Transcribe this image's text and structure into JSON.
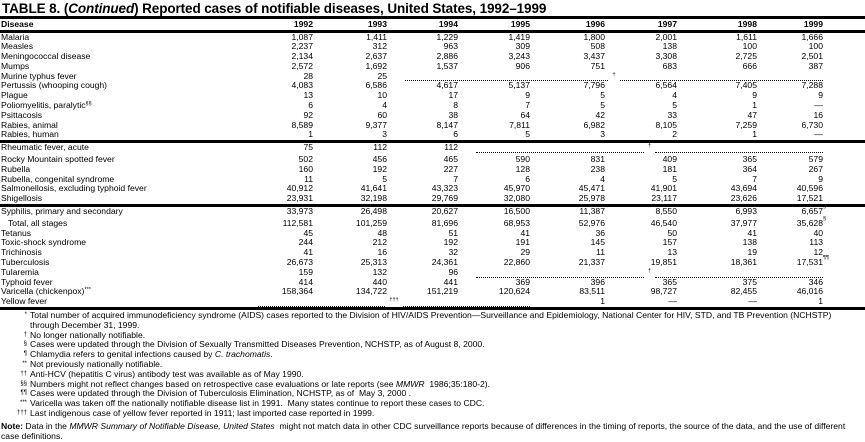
{
  "title": {
    "prefix": "TABLE 8. (",
    "italic": "Continued",
    "suffix": ") Reported cases of notifiable diseases, United States, 1992–1999"
  },
  "header": {
    "disease": "Disease",
    "years": [
      "1992",
      "1993",
      "1994",
      "1995",
      "1996",
      "1997",
      "1998",
      "1999"
    ]
  },
  "groups": [
    [
      {
        "disease": "Malaria",
        "values": [
          "1,087",
          "1,411",
          "1,229",
          "1,419",
          "1,800",
          "2,001",
          "1,611",
          "1,666"
        ]
      },
      {
        "disease": "Measles",
        "values": [
          "2,237",
          "312",
          "963",
          "309",
          "508",
          "138",
          "100",
          "100"
        ]
      },
      {
        "disease": "Meningococcal disease",
        "values": [
          "2,134",
          "2,637",
          "2,886",
          "3,243",
          "3,437",
          "3,308",
          "2,725",
          "2,501"
        ]
      },
      {
        "disease": "Mumps",
        "values": [
          "2,572",
          "1,692",
          "1,537",
          "906",
          "751",
          "683",
          "666",
          "387"
        ]
      },
      {
        "disease": "Murine typhus fever",
        "values": [
          "28",
          "25"
        ],
        "span": {
          "from": 2,
          "mark": "†"
        }
      },
      {
        "disease": "Pertussis (whooping cough)",
        "values": [
          "4,083",
          "6,586",
          "4,617",
          "5,137",
          "7,796",
          "6,564",
          "7,405",
          "7,288"
        ]
      },
      {
        "disease": "Plague",
        "values": [
          "13",
          "10",
          "17",
          "9",
          "5",
          "4",
          "9",
          "9"
        ]
      },
      {
        "disease": "Poliomyelitis, paralytic",
        "sup": "§§",
        "values": [
          "6",
          "4",
          "8",
          "7",
          "5",
          "5",
          "1",
          "—"
        ]
      },
      {
        "disease": "Psittacosis",
        "values": [
          "92",
          "60",
          "38",
          "64",
          "42",
          "33",
          "47",
          "16"
        ]
      },
      {
        "disease": "Rabies, animal",
        "values": [
          "8,589",
          "9,377",
          "8,147",
          "7,811",
          "6,982",
          "8,105",
          "7,259",
          "6,730"
        ]
      },
      {
        "disease": "Rabies, human",
        "values": [
          "1",
          "3",
          "6",
          "5",
          "3",
          "2",
          "1",
          "—"
        ]
      }
    ],
    [
      {
        "disease": "Rheumatic fever, acute",
        "values": [
          "75",
          "112",
          "112"
        ],
        "span": {
          "from": 3,
          "mark": "†"
        },
        "gapAfter": true
      },
      {
        "disease": "Rocky Mountain spotted fever",
        "values": [
          "502",
          "456",
          "465",
          "590",
          "831",
          "409",
          "365",
          "579"
        ]
      },
      {
        "disease": "Rubella",
        "values": [
          "160",
          "192",
          "227",
          "128",
          "238",
          "181",
          "364",
          "267"
        ]
      },
      {
        "disease": "Rubella, congenital syndrome",
        "values": [
          "11",
          "5",
          "7",
          "6",
          "4",
          "5",
          "7",
          "9"
        ]
      },
      {
        "disease": "Salmonellosis, excluding typhoid fever",
        "values": [
          "40,912",
          "41,641",
          "43,323",
          "45,970",
          "45,471",
          "41,901",
          "43,694",
          "40,596"
        ]
      },
      {
        "disease": "Shigellosis",
        "values": [
          "23,931",
          "32,198",
          "29,769",
          "32,080",
          "25,978",
          "23,117",
          "23,626",
          "17,521"
        ]
      }
    ],
    [
      {
        "disease": "Syphilis, primary and secondary",
        "values": [
          "33,973",
          "26,498",
          "20,627",
          "16,500",
          "11,387",
          "8,550",
          "6,993",
          "6,657"
        ],
        "valueSups": {
          "7": "§"
        },
        "gapAfter": true
      },
      {
        "disease": "   Total, all stages",
        "values": [
          "112,581",
          "101,259",
          "81,696",
          "68,953",
          "52,976",
          "46,540",
          "37,977",
          "35,628"
        ],
        "valueSups": {
          "7": "§"
        }
      },
      {
        "disease": "Tetanus",
        "values": [
          "45",
          "48",
          "51",
          "41",
          "36",
          "50",
          "41",
          "40"
        ]
      },
      {
        "disease": "Toxic-shock syndrome",
        "values": [
          "244",
          "212",
          "192",
          "191",
          "145",
          "157",
          "138",
          "113"
        ]
      },
      {
        "disease": "Trichinosis",
        "values": [
          "41",
          "16",
          "32",
          "29",
          "11",
          "13",
          "19",
          "12"
        ]
      },
      {
        "disease": "Tuberculosis",
        "values": [
          "26,673",
          "25,313",
          "24,361",
          "22,860",
          "21,337",
          "19,851",
          "18,361",
          "17,531"
        ],
        "valueSups": {
          "7": "¶¶"
        }
      },
      {
        "disease": "Tularemia",
        "values": [
          "159",
          "132",
          "96"
        ],
        "span": {
          "from": 3,
          "mark": "†"
        }
      },
      {
        "disease": "Typhoid fever",
        "values": [
          "414",
          "440",
          "441",
          "369",
          "396",
          "365",
          "375",
          "346"
        ]
      },
      {
        "disease": "Varicella (chickenpox)",
        "sup": "***",
        "values": [
          "158,364",
          "134,722",
          "151,219",
          "120,624",
          "83,511",
          "98,727",
          "82,455",
          "46,016"
        ]
      },
      {
        "disease": "Yellow fever",
        "values": [
          "",
          "",
          "",
          "",
          "1",
          "—",
          "—",
          "1"
        ],
        "leadSpan": {
          "to": 4,
          "mark": "†††"
        }
      }
    ]
  ],
  "footnotes": [
    {
      "mark": "*",
      "parts": [
        {
          "t": "Total number of acquired immunodeficiency syndrome (AIDS) cases reported to the Division of HIV/AIDS Prevention—Surveillance and Epidemiology, National Center for HIV, STD, and TB Prevention (NCHSTP) through December 31, 1999."
        }
      ]
    },
    {
      "mark": "†",
      "parts": [
        {
          "t": "No longer nationally notifiable."
        }
      ]
    },
    {
      "mark": "§",
      "parts": [
        {
          "t": "Cases were updated through the Division of Sexually Transmitted Diseases Prevention, NCHSTP, as of August 8, 2000."
        }
      ]
    },
    {
      "mark": "¶",
      "parts": [
        {
          "t": "Chlamydia refers to genital infections caused by "
        },
        {
          "t": "C. trachomatis",
          "i": true
        },
        {
          "t": "."
        }
      ]
    },
    {
      "mark": "**",
      "parts": [
        {
          "t": "Not previously nationally notifiable."
        }
      ]
    },
    {
      "mark": "††",
      "parts": [
        {
          "t": "Anti-HCV (hepatitis C virus) antibody test was available as of May 1990."
        }
      ]
    },
    {
      "mark": "§§",
      "parts": [
        {
          "t": "Numbers might not reflect changes based on retrospective case evaluations or late reports (see "
        },
        {
          "t": "MMWR",
          "i": true
        },
        {
          "t": "  1986;35:180-2)."
        }
      ]
    },
    {
      "mark": "¶¶",
      "parts": [
        {
          "t": "Cases were updated through the Division of Tuberculosis Elimination, NCHSTP, as of  May 3, 2000 ."
        }
      ]
    },
    {
      "mark": "***",
      "parts": [
        {
          "t": "Varicella was taken off the nationally notifiable disease list in 1991.  Many states continue to report these cases to CDC."
        }
      ]
    },
    {
      "mark": "†††",
      "parts": [
        {
          "t": "Last indigenous case of yellow fever reported in 1911; last imported case reported in 1999."
        }
      ]
    }
  ],
  "note": {
    "label": "Note:",
    "parts": [
      {
        "t": " Data in the "
      },
      {
        "t": "MMWR Summary of Notifiable Disease, United States",
        "i": true
      },
      {
        "t": "  might not match data in other CDC surveillance reports because of differences in the timing of reports, the source of the data, and the use of different case definitions."
      }
    ]
  }
}
